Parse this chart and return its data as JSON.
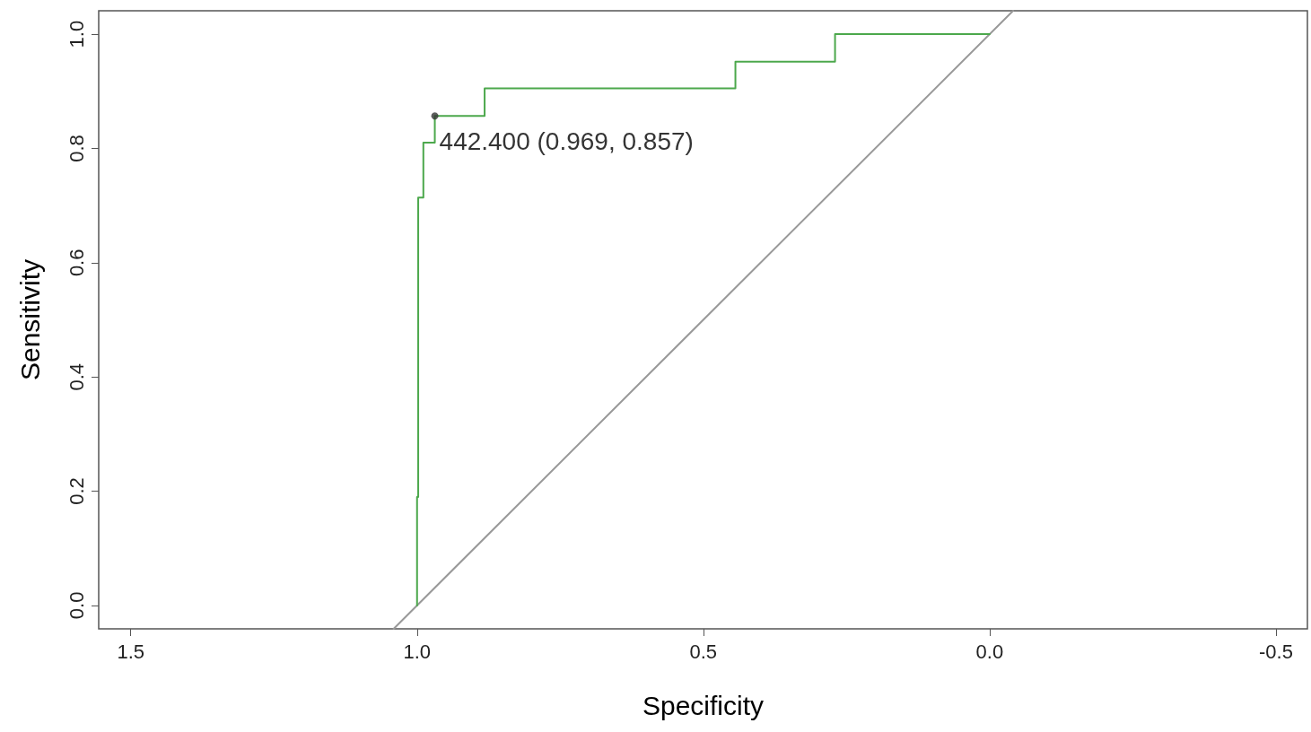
{
  "chart_data": {
    "type": "line",
    "xlabel": "Specificity",
    "ylabel": "Sensitivity",
    "xlim": [
      1.556,
      -0.555
    ],
    "ylim": [
      -0.041,
      1.041
    ],
    "xticks": [
      1.5,
      {
        "value": 1,
        "label": "1.0"
      },
      0.5,
      {
        "value": 0,
        "label": "0.0"
      },
      -0.5
    ],
    "yticks": [
      {
        "value": 0,
        "label": "0.0"
      },
      0.2,
      0.4,
      0.6,
      0.8,
      {
        "value": 1,
        "label": "1.0"
      }
    ],
    "grid": false,
    "marker": "none",
    "line_style": "solid",
    "series": [
      {
        "color": "#999999",
        "x": [
          1.041,
          -0.041
        ],
        "values": [
          -0.041,
          1.041
        ]
      },
      {
        "color": "#4ca84c",
        "x": [
          1.0,
          1.0,
          0.998,
          0.998,
          0.989,
          0.989,
          0.969,
          0.969,
          0.882,
          0.882,
          0.444,
          0.444,
          0.27,
          0.27,
          0.0
        ],
        "values": [
          0.0,
          0.19,
          0.19,
          0.714,
          0.714,
          0.81,
          0.81,
          0.857,
          0.857,
          0.905,
          0.905,
          0.952,
          0.952,
          1.0,
          1.0
        ]
      },
      {
        "type": "scatter",
        "color": "#333333",
        "marker": "circle",
        "x": [
          0.969
        ],
        "values": [
          0.857
        ]
      }
    ],
    "annotations": [
      {
        "text": "442.400 (0.969, 0.857)",
        "x": 0.969,
        "y": 0.857
      }
    ]
  }
}
